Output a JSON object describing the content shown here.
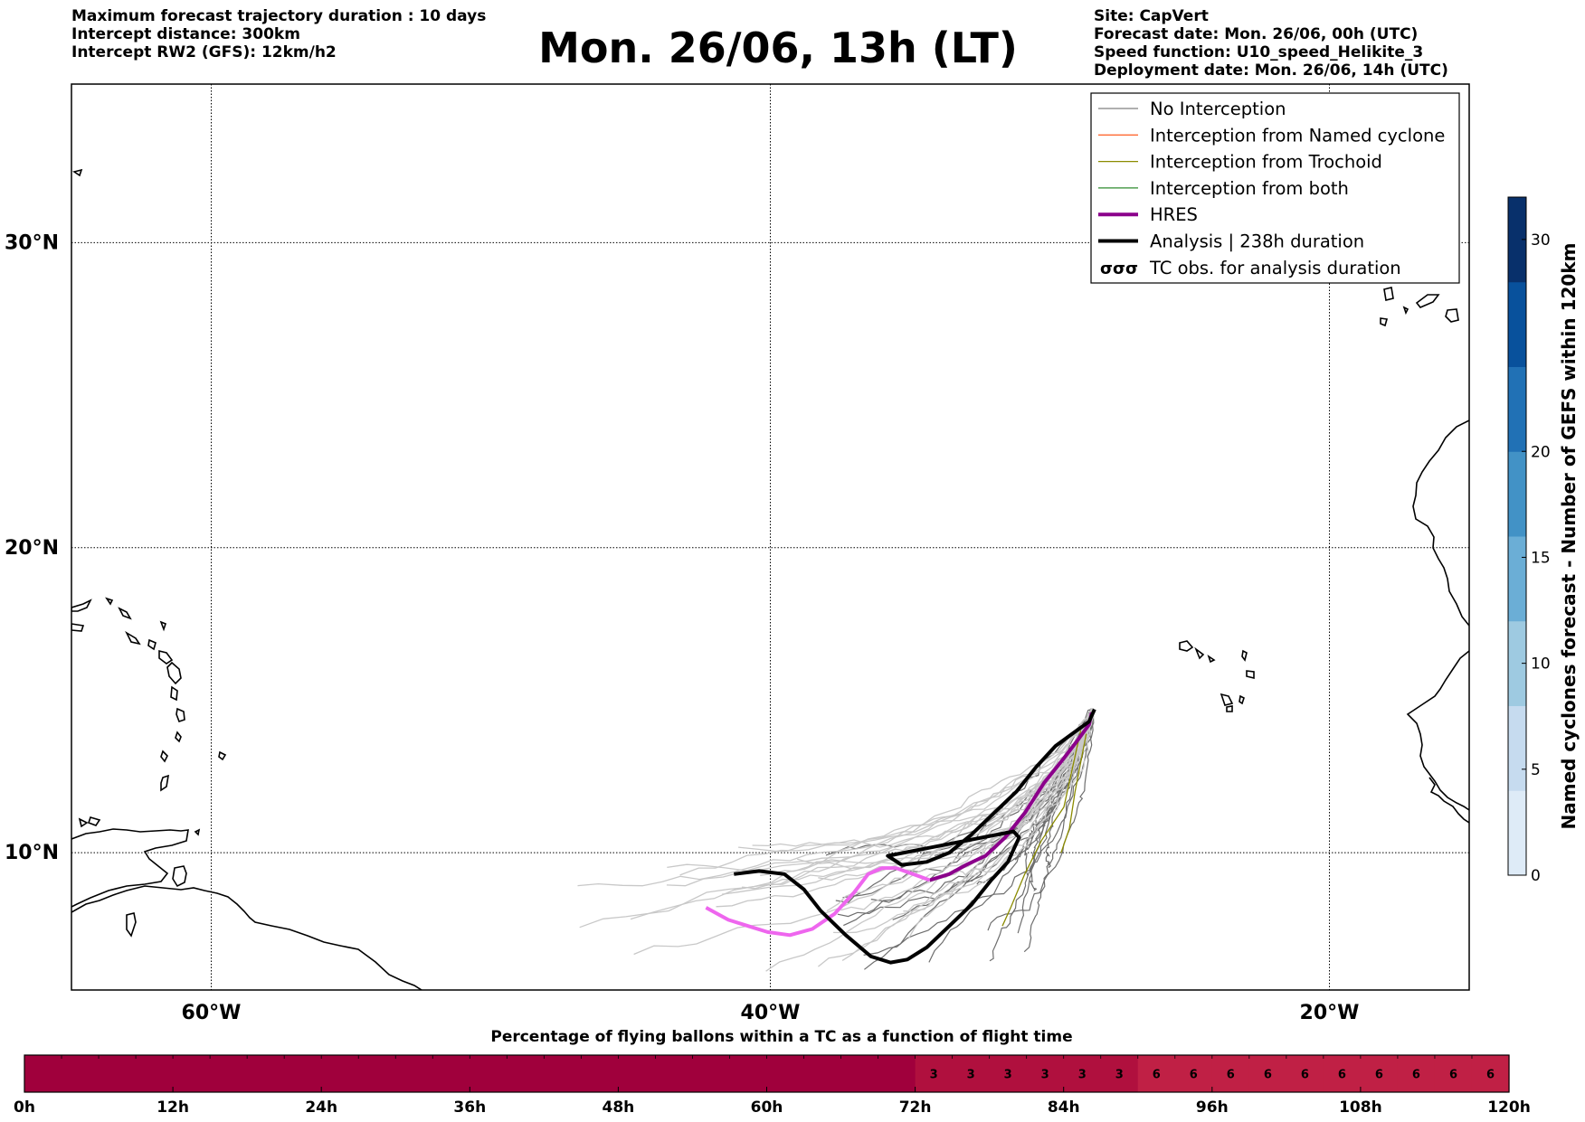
{
  "header": {
    "left_lines": [
      "Maximum forecast trajectory duration : 10 days",
      "Intercept distance: 300km",
      "Intercept RW2 (GFS):  12km/h2"
    ],
    "title": "Mon. 26/06, 13h (LT)",
    "right_lines": [
      "Site: CapVert",
      "Forecast date: Mon. 26/06, 00h (UTC)",
      "Speed function: U10_speed_Helikite_3",
      "Deployment date: Mon. 26/06, 14h (UTC)"
    ]
  },
  "map": {
    "lat_labels": [
      "30°N",
      "20°N",
      "10°N"
    ],
    "lon_labels": [
      "60°W",
      "40°W",
      "20°W"
    ],
    "lat_values": [
      30,
      20,
      10
    ],
    "lon_values": [
      -60,
      -40,
      -20
    ],
    "extent": {
      "lon_min": -65,
      "lon_max": -15,
      "lat_min": 5.5,
      "lat_max": 35.2
    }
  },
  "legend": {
    "items": [
      {
        "label": "No Interception",
        "color": "#808080",
        "style": "thin"
      },
      {
        "label": "Interception from Named cyclone",
        "color": "#ff6a33",
        "style": "thin"
      },
      {
        "label": "Interception from Trochoid",
        "color": "#8b8b00",
        "style": "thin"
      },
      {
        "label": "Interception from both",
        "color": "#2e8b2e",
        "style": "thin"
      },
      {
        "label": "HRES",
        "color": "#8b008b",
        "style": "thick"
      },
      {
        "label": "Analysis | 238h duration",
        "color": "#000000",
        "style": "thick"
      },
      {
        "label": "TC obs. for analysis duration",
        "color": "#000000",
        "style": "symbol",
        "symbol": "σσσ"
      }
    ]
  },
  "colorbar": {
    "label": "Named cyclones forecast - Number of GEFS within 120km",
    "ticks": [
      "0",
      "5",
      "10",
      "15",
      "20",
      "30"
    ],
    "tick_values": [
      0,
      5,
      10,
      15,
      20,
      30
    ],
    "max": 32,
    "colors": [
      "#deebf7",
      "#c6dbef",
      "#9ecae1",
      "#6baed6",
      "#4292c6",
      "#2171b5",
      "#08519c",
      "#08306b"
    ]
  },
  "timeline": {
    "title": "Percentage of flying ballons within a TC as a function of flight time",
    "tick_labels": [
      "0h",
      "12h",
      "24h",
      "36h",
      "48h",
      "60h",
      "72h",
      "84h",
      "96h",
      "108h",
      "120h"
    ],
    "hours_per_cell": 3,
    "total_hours": 120,
    "cell_values": [
      null,
      null,
      null,
      null,
      null,
      null,
      null,
      null,
      null,
      null,
      null,
      null,
      null,
      null,
      null,
      null,
      null,
      null,
      null,
      null,
      null,
      null,
      null,
      null,
      3,
      3,
      3,
      3,
      3,
      3,
      6,
      6,
      6,
      6,
      6,
      6,
      6,
      6,
      6,
      6
    ],
    "color_zero": "#a0003c",
    "color_3": "#b0103e",
    "color_6": "#c02045"
  },
  "trajectories": {
    "analysis": [
      [
        -28.4,
        14.7
      ],
      [
        -28.6,
        14.3
      ],
      [
        -29.2,
        13.9
      ],
      [
        -29.8,
        13.5
      ],
      [
        -30.5,
        12.8
      ],
      [
        -31.2,
        12.0
      ],
      [
        -32.0,
        11.3
      ],
      [
        -32.8,
        10.6
      ],
      [
        -33.6,
        10.0
      ],
      [
        -34.4,
        9.7
      ],
      [
        -35.3,
        9.6
      ],
      [
        -35.8,
        9.9
      ],
      [
        -31.3,
        10.7
      ],
      [
        -31.1,
        10.5
      ],
      [
        -31.3,
        10.1
      ],
      [
        -31.5,
        9.7
      ],
      [
        -32.1,
        9.1
      ],
      [
        -32.8,
        8.3
      ],
      [
        -33.6,
        7.6
      ],
      [
        -34.4,
        6.9
      ],
      [
        -35.1,
        6.5
      ],
      [
        -35.7,
        6.4
      ],
      [
        -36.4,
        6.6
      ],
      [
        -37.3,
        7.3
      ],
      [
        -38.2,
        8.1
      ],
      [
        -38.8,
        8.8
      ],
      [
        -39.5,
        9.3
      ],
      [
        -40.4,
        9.4
      ],
      [
        -41.3,
        9.3
      ]
    ],
    "hres": [
      [
        -28.5,
        14.6
      ],
      [
        -28.6,
        14.2
      ],
      [
        -29.0,
        13.7
      ],
      [
        -29.5,
        13.1
      ],
      [
        -30.2,
        12.3
      ],
      [
        -30.9,
        11.3
      ],
      [
        -31.6,
        10.5
      ],
      [
        -32.3,
        9.9
      ],
      [
        -33.0,
        9.6
      ],
      [
        -33.6,
        9.3
      ],
      [
        -34.3,
        9.1
      ],
      [
        -34.9,
        9.3
      ],
      [
        -35.5,
        9.5
      ],
      [
        -36.0,
        9.5
      ],
      [
        -36.5,
        9.3
      ],
      [
        -37.0,
        8.7
      ],
      [
        -37.7,
        8.0
      ],
      [
        -38.5,
        7.5
      ],
      [
        -39.3,
        7.3
      ],
      [
        -40.1,
        7.4
      ],
      [
        -40.8,
        7.6
      ],
      [
        -41.5,
        7.8
      ],
      [
        -42.3,
        8.2
      ]
    ]
  }
}
